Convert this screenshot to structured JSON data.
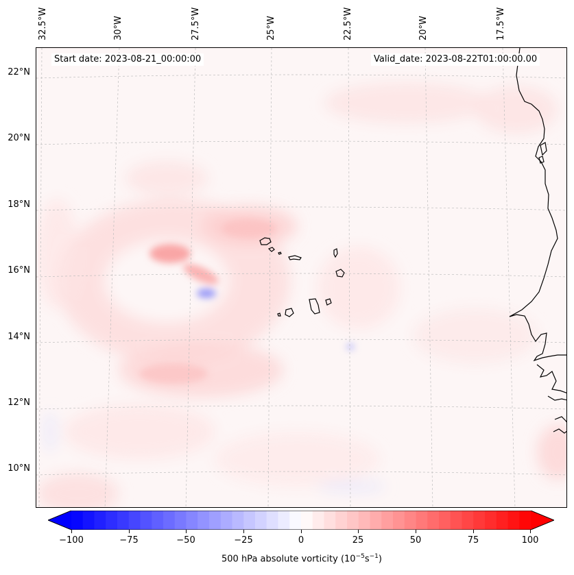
{
  "map": {
    "header_left": "Start date: 2023-08-21_00:00:00",
    "header_right": "Valid_date: 2023-08-22T01:00:00.00",
    "lon_labels": [
      "32.5°W",
      "30°W",
      "27.5°W",
      "25°W",
      "22.5°W",
      "20°W",
      "17.5°W"
    ],
    "lat_labels": [
      "22°N",
      "20°N",
      "18°N",
      "16°N",
      "14°N",
      "12°N",
      "10°N"
    ],
    "features": [
      "Cape Verde islands",
      "West African coastline"
    ]
  },
  "colorbar": {
    "label_text": "500 hPa absolute vorticity (10",
    "label_sup1": "−5",
    "label_mid": "s",
    "label_sup2": "−1",
    "label_end": ")",
    "ticks": [
      "−100",
      "−75",
      "−50",
      "−25",
      "0",
      "25",
      "50",
      "75",
      "100"
    ],
    "range": [
      -100,
      100
    ],
    "extend": "both",
    "colormap": "bwr",
    "colors": {
      "negative": "#0000ff",
      "zero": "#ffffff",
      "positive": "#ff0000"
    }
  }
}
